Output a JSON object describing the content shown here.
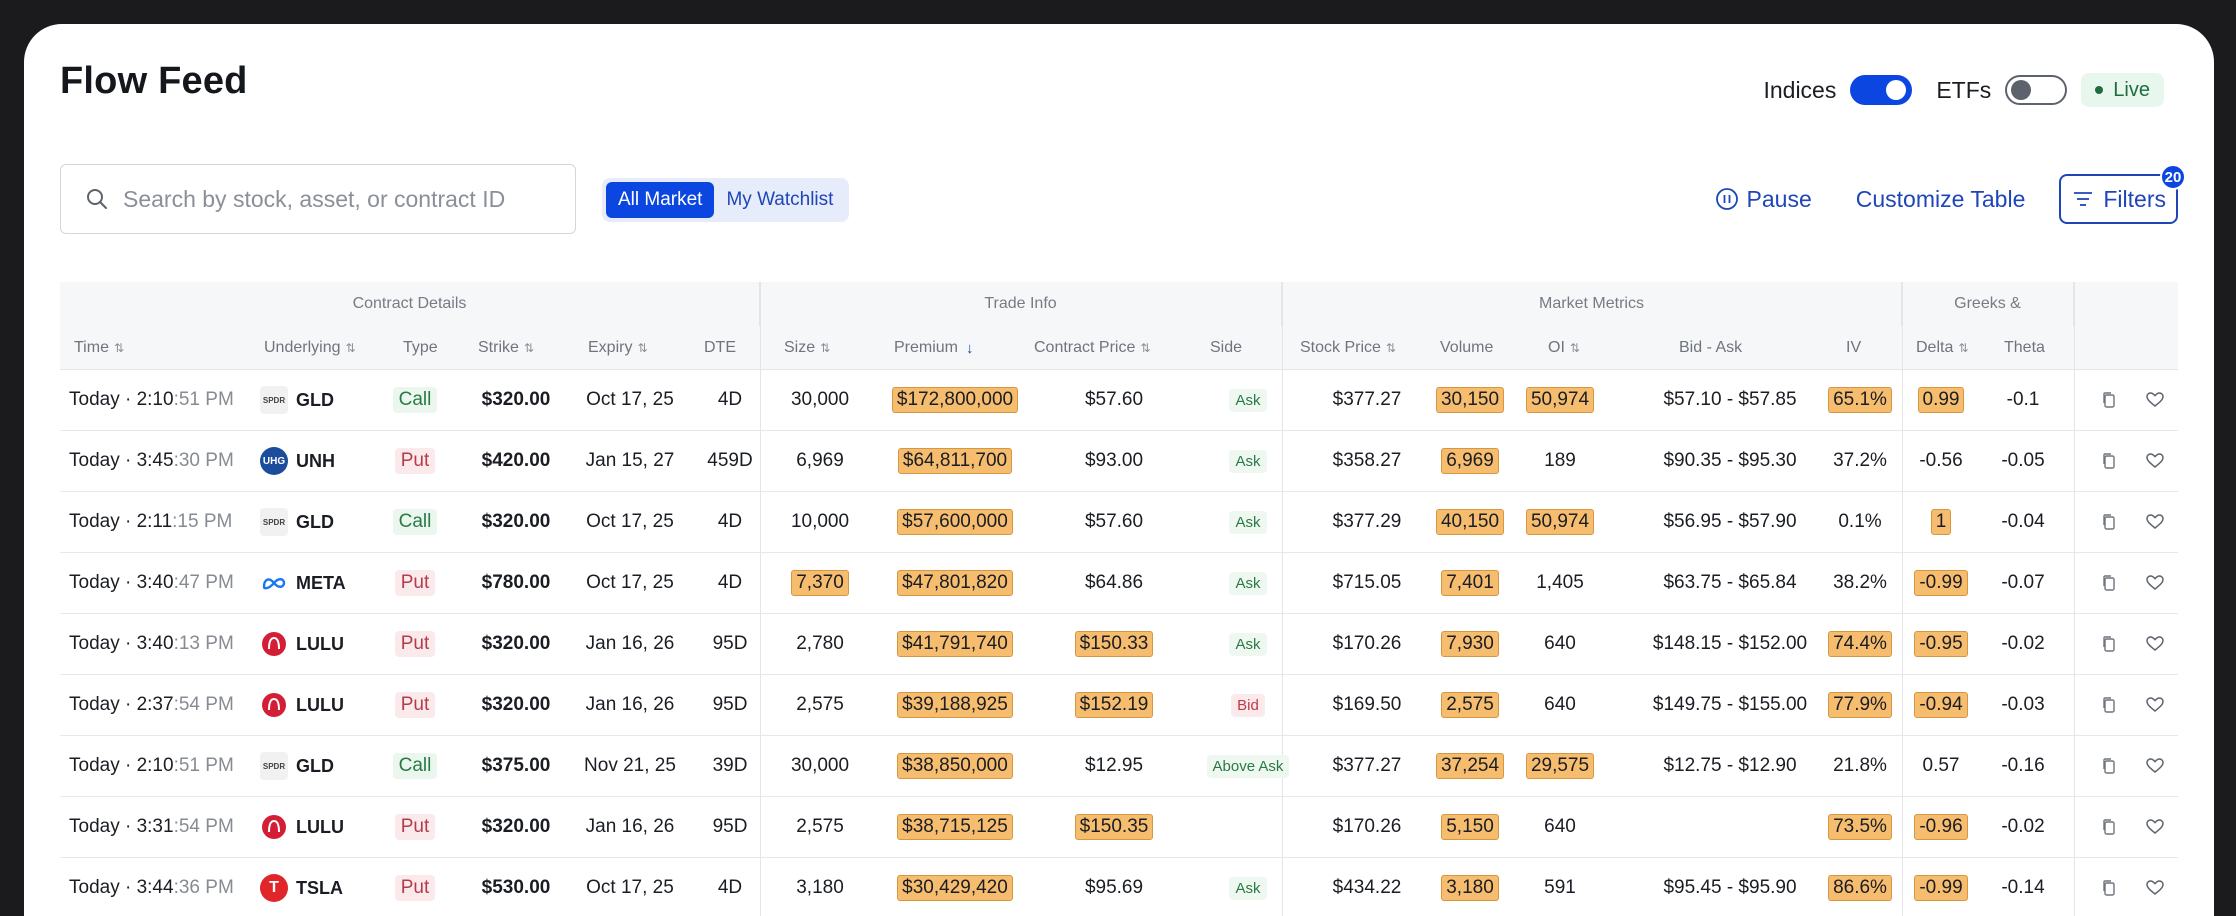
{
  "title": "Flow Feed",
  "toggles": [
    {
      "label": "Indices",
      "on": true
    },
    {
      "label": "ETFs",
      "on": false
    }
  ],
  "live_label": "Live",
  "search": {
    "placeholder": "Search by stock, asset, or contract ID"
  },
  "segment": {
    "all": "All Market",
    "watchlist": "My Watchlist"
  },
  "actions": {
    "pause": "Pause",
    "customize": "Customize Table",
    "filters": "Filters",
    "filters_count": "20"
  },
  "groups": [
    "Contract Details",
    "Trade Info",
    "Market Metrics",
    "Greeks &"
  ],
  "headers": [
    "Time",
    "Underlying",
    "Type",
    "Strike",
    "Expiry",
    "DTE",
    "Size",
    "Premium",
    "Contract Price",
    "Side",
    "Stock Price",
    "Volume",
    "OI",
    "Bid - Ask",
    "IV",
    "Delta",
    "Theta"
  ],
  "rows": [
    {
      "time_a": "Today · 2:10",
      "time_b": ":51 PM",
      "logo": "SPDR",
      "ticker": "GLD",
      "type": "Call",
      "strike": "$320.00",
      "expiry": "Oct 17, 25",
      "dte": "4D",
      "size": "30,000",
      "premium": "$172,800,000",
      "cprice": "$57.60",
      "side": "Ask",
      "stock": "$377.27",
      "volume": "30,150",
      "oi": "50,974",
      "bidask": "$57.10 - $57.85",
      "iv": "65.1%",
      "delta": "0.99",
      "theta": "-0.1"
    },
    {
      "time_a": "Today · 3:45",
      "time_b": ":30 PM",
      "logo": "UHG",
      "ticker": "UNH",
      "type": "Put",
      "strike": "$420.00",
      "expiry": "Jan 15, 27",
      "dte": "459D",
      "size": "6,969",
      "premium": "$64,811,700",
      "cprice": "$93.00",
      "side": "Ask",
      "stock": "$358.27",
      "volume": "6,969",
      "oi": "189",
      "bidask": "$90.35 - $95.30",
      "iv": "37.2%",
      "delta": "-0.56",
      "theta": "-0.05"
    },
    {
      "time_a": "Today · 2:11",
      "time_b": ":15 PM",
      "logo": "SPDR",
      "ticker": "GLD",
      "type": "Call",
      "strike": "$320.00",
      "expiry": "Oct 17, 25",
      "dte": "4D",
      "size": "10,000",
      "premium": "$57,600,000",
      "cprice": "$57.60",
      "side": "Ask",
      "stock": "$377.29",
      "volume": "40,150",
      "oi": "50,974",
      "bidask": "$56.95 - $57.90",
      "iv": "0.1%",
      "delta": "1",
      "theta": "-0.04"
    },
    {
      "time_a": "Today · 3:40",
      "time_b": ":47 PM",
      "logo": "∞",
      "ticker": "META",
      "type": "Put",
      "strike": "$780.00",
      "expiry": "Oct 17, 25",
      "dte": "4D",
      "size": "7,370",
      "premium": "$47,801,820",
      "cprice": "$64.86",
      "side": "Ask",
      "stock": "$715.05",
      "volume": "7,401",
      "oi": "1,405",
      "bidask": "$63.75 - $65.84",
      "iv": "38.2%",
      "delta": "-0.99",
      "theta": "-0.07"
    },
    {
      "time_a": "Today · 3:40",
      "time_b": ":13 PM",
      "logo": "Ω",
      "ticker": "LULU",
      "type": "Put",
      "strike": "$320.00",
      "expiry": "Jan 16, 26",
      "dte": "95D",
      "size": "2,780",
      "premium": "$41,791,740",
      "cprice": "$150.33",
      "side": "Ask",
      "stock": "$170.26",
      "volume": "7,930",
      "oi": "640",
      "bidask": "$148.15 - $152.00",
      "iv": "74.4%",
      "delta": "-0.95",
      "theta": "-0.02"
    },
    {
      "time_a": "Today · 2:37",
      "time_b": ":54 PM",
      "logo": "Ω",
      "ticker": "LULU",
      "type": "Put",
      "strike": "$320.00",
      "expiry": "Jan 16, 26",
      "dte": "95D",
      "size": "2,575",
      "premium": "$39,188,925",
      "cprice": "$152.19",
      "side": "Bid",
      "stock": "$169.50",
      "volume": "2,575",
      "oi": "640",
      "bidask": "$149.75 - $155.00",
      "iv": "77.9%",
      "delta": "-0.94",
      "theta": "-0.03"
    },
    {
      "time_a": "Today · 2:10",
      "time_b": ":51 PM",
      "logo": "SPDR",
      "ticker": "GLD",
      "type": "Call",
      "strike": "$375.00",
      "expiry": "Nov 21, 25",
      "dte": "39D",
      "size": "30,000",
      "premium": "$38,850,000",
      "cprice": "$12.95",
      "side": "Above Ask",
      "stock": "$377.27",
      "volume": "37,254",
      "oi": "29,575",
      "bidask": "$12.75 - $12.90",
      "iv": "21.8%",
      "delta": "0.57",
      "theta": "-0.16"
    },
    {
      "time_a": "Today · 3:31",
      "time_b": ":54 PM",
      "logo": "Ω",
      "ticker": "LULU",
      "type": "Put",
      "strike": "$320.00",
      "expiry": "Jan 16, 26",
      "dte": "95D",
      "size": "2,575",
      "premium": "$38,715,125",
      "cprice": "$150.35",
      "side": "",
      "stock": "$170.26",
      "volume": "5,150",
      "oi": "640",
      "bidask": "",
      "iv": "73.5%",
      "delta": "-0.96",
      "theta": "-0.02"
    },
    {
      "time_a": "Today · 3:44",
      "time_b": ":36 PM",
      "logo": "T",
      "ticker": "TSLA",
      "type": "Put",
      "strike": "$530.00",
      "expiry": "Oct 17, 25",
      "dte": "4D",
      "size": "3,180",
      "premium": "$30,429,420",
      "cprice": "$95.69",
      "side": "Ask",
      "stock": "$434.22",
      "volume": "3,180",
      "oi": "591",
      "bidask": "$95.45 - $95.90",
      "iv": "86.6%",
      "delta": "-0.99",
      "theta": "-0.14"
    }
  ],
  "accent_color": "#0b46e0",
  "highlight_color": "#f6bd6f"
}
